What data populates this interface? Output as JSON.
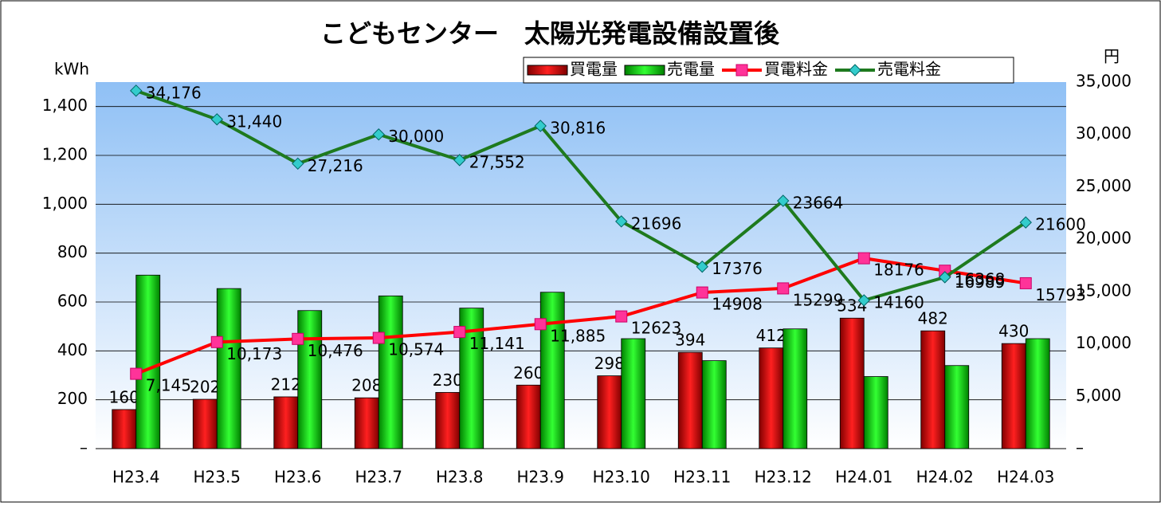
{
  "chart_data": {
    "type": "bar-line",
    "title": "こどもセンター　太陽光発電設備設置後",
    "ylabel": "kWh",
    "y2label": "円",
    "categories": [
      "H23.4",
      "H23.5",
      "H23.6",
      "H23.7",
      "H23.8",
      "H23.9",
      "H23.10",
      "H23.11",
      "H23.12",
      "H24.01",
      "H24.02",
      "H24.03"
    ],
    "series": [
      {
        "name": "買電量",
        "type": "bar",
        "color": "#cc0000",
        "values": [
          160,
          202,
          212,
          208,
          230,
          260,
          298,
          394,
          412,
          534,
          482,
          430
        ],
        "show_labels": true
      },
      {
        "name": "売電量",
        "type": "bar",
        "color": "#00cc00",
        "values": [
          710,
          655,
          565,
          625,
          575,
          640,
          450,
          360,
          490,
          295,
          340,
          450
        ]
      },
      {
        "name": "買電料金",
        "type": "line",
        "axis": "y2",
        "color": "#ff0000",
        "marker_color": "#ff3399",
        "values": [
          7145,
          10173,
          10476,
          10574,
          11141,
          11885,
          12623,
          14908,
          15299,
          18176,
          16989,
          15793
        ],
        "value_labels": [
          "7,145",
          "10,173",
          "10,476",
          "10,574",
          "11,141",
          "11,885",
          "12623",
          "14908",
          "15299",
          "18176",
          "16989",
          "15793"
        ]
      },
      {
        "name": "売電料金",
        "type": "line",
        "axis": "y2",
        "color": "#1e7a1e",
        "marker_color": "#33cccc",
        "values": [
          34176,
          31440,
          27216,
          30000,
          27552,
          30816,
          21696,
          17376,
          23664,
          14160,
          16368,
          21600
        ],
        "value_labels": [
          "34,176",
          "31,440",
          "27,216",
          "30,000",
          "27,552",
          "30,816",
          "21696",
          "17376",
          "23664",
          "14160",
          "16368",
          "21600"
        ]
      }
    ],
    "ylim": [
      0,
      1500
    ],
    "yticks": [
      {
        "value": 0,
        "label": "–"
      },
      200,
      400,
      600,
      800,
      {
        "value": 1000,
        "label": "1,000"
      },
      {
        "value": 1200,
        "label": "1,200"
      },
      {
        "value": 1400,
        "label": "1,400"
      }
    ],
    "y2lim": [
      0,
      35000
    ],
    "y2ticks": [
      {
        "value": 0,
        "label": "–"
      },
      {
        "value": 5000,
        "label": "5,000"
      },
      {
        "value": 10000,
        "label": "10,000"
      },
      {
        "value": 15000,
        "label": "15,000"
      },
      {
        "value": 20000,
        "label": "20,000"
      },
      {
        "value": 25000,
        "label": "25,000"
      },
      {
        "value": 30000,
        "label": "30,000"
      },
      {
        "value": 35000,
        "label": "35,000"
      }
    ],
    "grid": true
  }
}
